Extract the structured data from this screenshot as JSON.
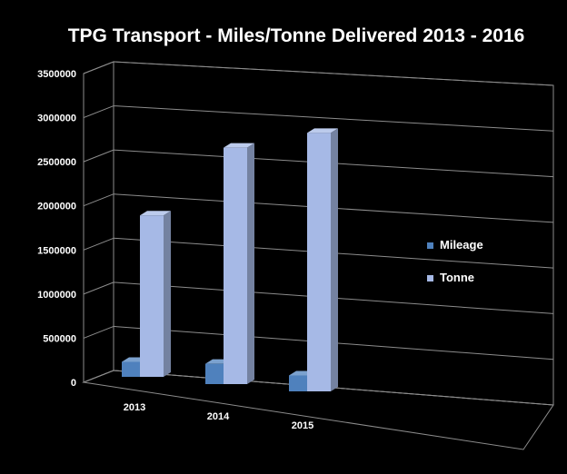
{
  "chart_data": {
    "type": "bar",
    "title": "TPG Transport - Miles/Tonne Delivered 2013 - 2016",
    "categories": [
      "2013",
      "2014",
      "2015"
    ],
    "series": [
      {
        "name": "Mileage",
        "values": [
          170000,
          230000,
          180000
        ]
      },
      {
        "name": "Tonne",
        "values": [
          1830000,
          2680000,
          2930000
        ]
      }
    ],
    "yticks": [
      "0",
      "500000",
      "1000000",
      "1500000",
      "2000000",
      "2500000",
      "3000000",
      "3500000"
    ],
    "ylim": [
      0,
      3500000
    ],
    "grid": true,
    "legend": "right",
    "colors": {
      "Mileage": "#4f81bd",
      "Tonne": "#a6b9e6",
      "background": "#000000",
      "text": "#ffffff"
    }
  }
}
